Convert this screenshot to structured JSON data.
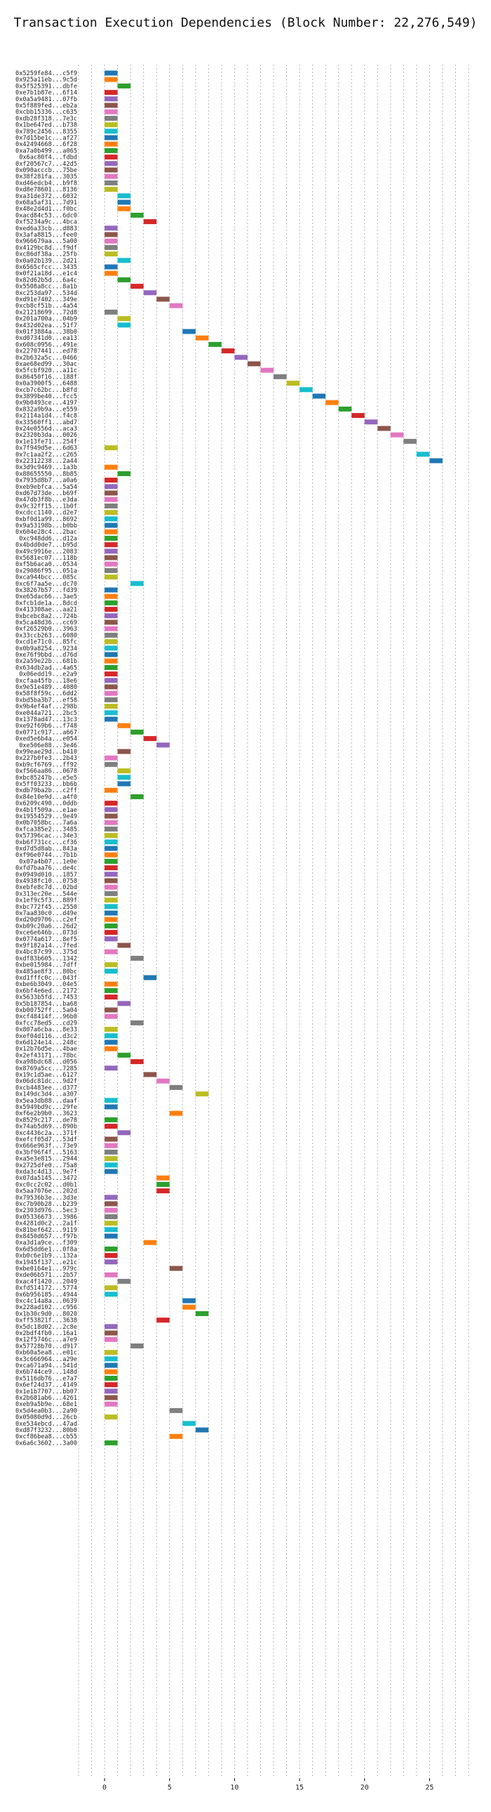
{
  "chart_data": {
    "type": "gantt",
    "title": "Transaction Execution Dependencies (Block Number: 22,276,549)",
    "xlabel": "",
    "ylabel": "",
    "xlim": [
      -2,
      28
    ],
    "xticks": [
      0,
      5,
      10,
      15,
      20,
      25
    ],
    "grid": true,
    "bar_duration": 1,
    "palette": [
      "#1f77b4",
      "#ff7f0e",
      "#2ca02c",
      "#d62728",
      "#9467bd",
      "#8c564b",
      "#e377c2",
      "#7f7f7f",
      "#bcbd22",
      "#17becf"
    ],
    "transactions": [
      {
        "label": "0x5259fe84...c5f9",
        "start": 0
      },
      {
        "label": "0x925a11eb...9c5d",
        "start": 0
      },
      {
        "label": "0x5f525391...dbfe",
        "start": 1
      },
      {
        "label": "0xe7b1b87e...6f14",
        "start": 0
      },
      {
        "label": "0x0a5a9481...07fb",
        "start": 0
      },
      {
        "label": "0x5f889fed...eb2a",
        "start": 0
      },
      {
        "label": "0xcbb15336...c635",
        "start": 0
      },
      {
        "label": "0xdb28f318...7e3c",
        "start": 0
      },
      {
        "label": "0x1be647ed...b738",
        "start": 0
      },
      {
        "label": "0x789c2456...8355",
        "start": 0
      },
      {
        "label": "0x7d15be1c...af27",
        "start": 0
      },
      {
        "label": "0x42494668...6f28",
        "start": 0
      },
      {
        "label": "0xa7a0b499...a065",
        "start": 0
      },
      {
        "label": "0x6ac80f4...fdbd",
        "start": 0
      },
      {
        "label": "0xf20567c7...42d5",
        "start": 0
      },
      {
        "label": "0x090acccb...75be",
        "start": 0
      },
      {
        "label": "0x38f281fa...3035",
        "start": 0
      },
      {
        "label": "0xd46edcb4...b9f8",
        "start": 0
      },
      {
        "label": "0xd8e78601...8136",
        "start": 0
      },
      {
        "label": "0xa31de372...6032",
        "start": 1
      },
      {
        "label": "0x68a5af31...7d91",
        "start": 1
      },
      {
        "label": "0x48e2d4d1...f0bc",
        "start": 1
      },
      {
        "label": "0xacd84c53...6dc0",
        "start": 2
      },
      {
        "label": "0xf5234a9c...4bca",
        "start": 3
      },
      {
        "label": "0xed6a33cb...d883",
        "start": 0
      },
      {
        "label": "0x3afa8815...fee0",
        "start": 0
      },
      {
        "label": "0x966679aa...5a00",
        "start": 0
      },
      {
        "label": "0x4129bc8d...f9df",
        "start": 0
      },
      {
        "label": "0xc86df38a...25fb",
        "start": 0
      },
      {
        "label": "0x0a02b139...2d21",
        "start": 1
      },
      {
        "label": "0x6565cfcc...3435",
        "start": 0
      },
      {
        "label": "0x0f21a18d...e1c4",
        "start": 0
      },
      {
        "label": "0x82d62b5d...6a4c",
        "start": 1
      },
      {
        "label": "0x5508a8cc...8a1b",
        "start": 2
      },
      {
        "label": "0xc253da97...534d",
        "start": 3
      },
      {
        "label": "0xd91e7402...349e",
        "start": 4
      },
      {
        "label": "0xcb8cf51b...4a54",
        "start": 5
      },
      {
        "label": "0x21218699...72d8",
        "start": 0
      },
      {
        "label": "0x201a700a...04b9",
        "start": 1
      },
      {
        "label": "0x432d02ea...51f7",
        "start": 1
      },
      {
        "label": "0x01f3884a...38b0",
        "start": 6
      },
      {
        "label": "0xd07341d0...ea13",
        "start": 7
      },
      {
        "label": "0x608c0956...491e",
        "start": 8
      },
      {
        "label": "0x22707441...ed78",
        "start": 9
      },
      {
        "label": "0x2b632a5c...0466",
        "start": 10
      },
      {
        "label": "0xae68ed99...30ac",
        "start": 11
      },
      {
        "label": "0x5fcbf920...a11c",
        "start": 12
      },
      {
        "label": "0x86450f16...188f",
        "start": 13
      },
      {
        "label": "0x0a3900f5...6488",
        "start": 14
      },
      {
        "label": "0xcb7c62bc...b8fd",
        "start": 15
      },
      {
        "label": "0x3899be40...fcc5",
        "start": 16
      },
      {
        "label": "0x9b0493ce...4197",
        "start": 17
      },
      {
        "label": "0x832a9b9a...e559",
        "start": 18
      },
      {
        "label": "0x2114a1d4...f4c8",
        "start": 19
      },
      {
        "label": "0x33560ff1...abd7",
        "start": 20
      },
      {
        "label": "0x24e0556d...aca3",
        "start": 21
      },
      {
        "label": "0x2320b3da...0026",
        "start": 22
      },
      {
        "label": "0x1e13fe71...254f",
        "start": 23
      },
      {
        "label": "0x7f949d5e...6d63",
        "start": 0
      },
      {
        "label": "0x7c1aa2f2...c265",
        "start": 24
      },
      {
        "label": "0x22312238...2a44",
        "start": 25
      },
      {
        "label": "0x3d9c9469...1a3b",
        "start": 0
      },
      {
        "label": "0x88655550...8b85",
        "start": 1
      },
      {
        "label": "0x7935d8b7...a0a6",
        "start": 0
      },
      {
        "label": "0xeb9ebfca...5a54",
        "start": 0
      },
      {
        "label": "0xd67d73de...b69f",
        "start": 0
      },
      {
        "label": "0x47db3f8b...e3da",
        "start": 0
      },
      {
        "label": "0x9c32ff15...1b0f",
        "start": 0
      },
      {
        "label": "0xcdcc1140...d2e7",
        "start": 0
      },
      {
        "label": "0xbf0d1a99...8692",
        "start": 0
      },
      {
        "label": "0x9a53198b...b0bb",
        "start": 0
      },
      {
        "label": "0x604e28c4...2bac",
        "start": 0
      },
      {
        "label": "0xc948dd6...d12a",
        "start": 0
      },
      {
        "label": "0x4bdd0de7...b95d",
        "start": 0
      },
      {
        "label": "0x49c9916e...2083",
        "start": 0
      },
      {
        "label": "0x5681ec07...118b",
        "start": 0
      },
      {
        "label": "0xf5b6aca0...0534",
        "start": 0
      },
      {
        "label": "0x29086f95...051a",
        "start": 0
      },
      {
        "label": "0xca944bcc...085c",
        "start": 0
      },
      {
        "label": "0xc6f7aa5e...dc70",
        "start": 2
      },
      {
        "label": "0x38267b57...fd39",
        "start": 0
      },
      {
        "label": "0xe65dac66...3ae5",
        "start": 0
      },
      {
        "label": "0xfcb1de1a...8dcd",
        "start": 0
      },
      {
        "label": "0x413308ae...aa21",
        "start": 0
      },
      {
        "label": "0xbcebc8a2...724b",
        "start": 0
      },
      {
        "label": "0x5ca48d36...cc69",
        "start": 0
      },
      {
        "label": "0xf26529b0...3963",
        "start": 0
      },
      {
        "label": "0x33ccb263...6080",
        "start": 0
      },
      {
        "label": "0xcd1e71c0...85fc",
        "start": 0
      },
      {
        "label": "0x0b9a8254...9234",
        "start": 0
      },
      {
        "label": "0xe76f9bbd...d76d",
        "start": 0
      },
      {
        "label": "0x2a59e22b...681b",
        "start": 0
      },
      {
        "label": "0x634db2ad...4a65",
        "start": 0
      },
      {
        "label": "0x06edd19...e2a9",
        "start": 0
      },
      {
        "label": "0xcfaa45fb...18e6",
        "start": 0
      },
      {
        "label": "0x9e51e489...4080",
        "start": 0
      },
      {
        "label": "0x58f8f59c...6dd2",
        "start": 0
      },
      {
        "label": "0xbd5ba3b7...ef58",
        "start": 0
      },
      {
        "label": "0x9b4ef4af...298b",
        "start": 0
      },
      {
        "label": "0xe044a721...2bc5",
        "start": 0
      },
      {
        "label": "0x1378ad47...13c3",
        "start": 0
      },
      {
        "label": "0xe92f69b6...f748",
        "start": 1
      },
      {
        "label": "0x0771c917...a667",
        "start": 2
      },
      {
        "label": "0xed5e6b4a...e054",
        "start": 3
      },
      {
        "label": "0xe506e88...3e46",
        "start": 4
      },
      {
        "label": "0x99eae29d...b410",
        "start": 1
      },
      {
        "label": "0x227b0fe3...2b43",
        "start": 0
      },
      {
        "label": "0xb9cf6769...ff92",
        "start": 0
      },
      {
        "label": "0xf566aa86...0678",
        "start": 1
      },
      {
        "label": "0xbc85247b...e5e5",
        "start": 1
      },
      {
        "label": "0x5ff03233...bb6b",
        "start": 1
      },
      {
        "label": "0xdb79ba2b...c2ff",
        "start": 0
      },
      {
        "label": "0x84e10e9d...a4f0",
        "start": 2
      },
      {
        "label": "0x6209c490...0ddb",
        "start": 0
      },
      {
        "label": "0x4b1f509a...e1ae",
        "start": 0
      },
      {
        "label": "0x19554529...9e49",
        "start": 0
      },
      {
        "label": "0x0b7058bc...7a6a",
        "start": 0
      },
      {
        "label": "0xfca385e2...3485",
        "start": 0
      },
      {
        "label": "0x57396cac...34e3",
        "start": 0
      },
      {
        "label": "0xb6f731cc...cf36",
        "start": 0
      },
      {
        "label": "0xd7d5d8ab...843a",
        "start": 0
      },
      {
        "label": "0xf96e0744...7b1b",
        "start": 0
      },
      {
        "label": "0x07a4b07...1e0e",
        "start": 0
      },
      {
        "label": "0xfd7baa76...de4c",
        "start": 0
      },
      {
        "label": "0x0949d010...1857",
        "start": 0
      },
      {
        "label": "0x4938fc10...0758",
        "start": 0
      },
      {
        "label": "0xebfe8c7d...02bd",
        "start": 0
      },
      {
        "label": "0x313ec20e...544e",
        "start": 0
      },
      {
        "label": "0x1ef9c5f3...889f",
        "start": 0
      },
      {
        "label": "0xbc772f45...2550",
        "start": 0
      },
      {
        "label": "0x7aa830c0...d49e",
        "start": 0
      },
      {
        "label": "0xd20d9706...c2ef",
        "start": 0
      },
      {
        "label": "0xb09c20a6...26d2",
        "start": 0
      },
      {
        "label": "0xce6e646b...073d",
        "start": 0
      },
      {
        "label": "0x0774a617...8ef5",
        "start": 0
      },
      {
        "label": "0x9f182a14...7fed",
        "start": 1
      },
      {
        "label": "0x4bc87c99...375d",
        "start": 0
      },
      {
        "label": "0xdf83b605...1342",
        "start": 2
      },
      {
        "label": "0xbe015984...7dff",
        "start": 0
      },
      {
        "label": "0x485ae8f3...80bc",
        "start": 0
      },
      {
        "label": "0xd1fffc0c...043f",
        "start": 3
      },
      {
        "label": "0xbe6b3049...04e5",
        "start": 0
      },
      {
        "label": "0x6bf4e6ed...2172",
        "start": 0
      },
      {
        "label": "0x5633b5fd...7453",
        "start": 0
      },
      {
        "label": "0x5b187854...ba68",
        "start": 1
      },
      {
        "label": "0xb00752ff...5a04",
        "start": 0
      },
      {
        "label": "0xcf48414f...96b0",
        "start": 0
      },
      {
        "label": "0xfcc78ed5...cd29",
        "start": 2
      },
      {
        "label": "0x807a6cba...8e33",
        "start": 0
      },
      {
        "label": "0xef04d116...d3c2",
        "start": 0
      },
      {
        "label": "0x6d124e14...248c",
        "start": 0
      },
      {
        "label": "0x12b76d5e...4bae",
        "start": 0
      },
      {
        "label": "0x2ef43171...78bc",
        "start": 1
      },
      {
        "label": "0xa98bdc68...d056",
        "start": 2
      },
      {
        "label": "0x8769a5cc...7285",
        "start": 0
      },
      {
        "label": "0x19c1d5ae...6127",
        "start": 3
      },
      {
        "label": "0x06dc81dc...9d2f",
        "start": 4
      },
      {
        "label": "0xcb4483ee...d377",
        "start": 5
      },
      {
        "label": "0x149dc3d4...a307",
        "start": 7
      },
      {
        "label": "0x5ea3db88...daaf",
        "start": 0
      },
      {
        "label": "0x5949bd9c...29fe",
        "start": 0
      },
      {
        "label": "0xf6e2b9b0...3623",
        "start": 5
      },
      {
        "label": "0x8529c217...de78",
        "start": 0
      },
      {
        "label": "0x74ab5d69...890b",
        "start": 0
      },
      {
        "label": "0xc4436c2a...371f",
        "start": 1
      },
      {
        "label": "0xefcf05d7...53df",
        "start": 0
      },
      {
        "label": "0x666e963f...73e9",
        "start": 0
      },
      {
        "label": "0x3bf96f4f...5163",
        "start": 0
      },
      {
        "label": "0xa5e3e815...2944",
        "start": 0
      },
      {
        "label": "0x2725dfe0...75a8",
        "start": 0
      },
      {
        "label": "0xda3c4d13...9e7f",
        "start": 0
      },
      {
        "label": "0x07da5145...3472",
        "start": 4
      },
      {
        "label": "0xc0cc2c02...d0b1",
        "start": 4
      },
      {
        "label": "0x5aa7076e...202d",
        "start": 4
      },
      {
        "label": "0x79536b3e...3d3e",
        "start": 0
      },
      {
        "label": "0xc7b90b28...b239",
        "start": 0
      },
      {
        "label": "0x2303d976...5ec3",
        "start": 0
      },
      {
        "label": "0x05336673...3986",
        "start": 0
      },
      {
        "label": "0x4281d0c2...2a1f",
        "start": 0
      },
      {
        "label": "0x81bef642...9119",
        "start": 0
      },
      {
        "label": "0x8450d657...f97b",
        "start": 0
      },
      {
        "label": "0xa3d1a9ce...f309",
        "start": 3
      },
      {
        "label": "0x6d5dd6e1...0f8a",
        "start": 0
      },
      {
        "label": "0xb0c6e1b9...132a",
        "start": 0
      },
      {
        "label": "0x1945f137...e21c",
        "start": 0
      },
      {
        "label": "0xbe0164e1...979c",
        "start": 5
      },
      {
        "label": "0xde06b571...2b57",
        "start": 0
      },
      {
        "label": "0xac4f1420...2049",
        "start": 1
      },
      {
        "label": "0xfd514172...5774",
        "start": 0
      },
      {
        "label": "0x6b956185...4944",
        "start": 0
      },
      {
        "label": "0xc4c14a8a...0639",
        "start": 6
      },
      {
        "label": "0x228ad102...c956",
        "start": 6
      },
      {
        "label": "0x1b30c9d0...8020",
        "start": 7
      },
      {
        "label": "0xff53821f...3638",
        "start": 4
      },
      {
        "label": "0x5dc18d02...2c8e",
        "start": 0
      },
      {
        "label": "0x2bdf4fb0...16a1",
        "start": 0
      },
      {
        "label": "0x12f5746c...a7e9",
        "start": 0
      },
      {
        "label": "0x57728b70...d917",
        "start": 2
      },
      {
        "label": "0xb60a5ea8...e01c",
        "start": 0
      },
      {
        "label": "0x3c666964...a29e",
        "start": 0
      },
      {
        "label": "0xca671a94...541d",
        "start": 0
      },
      {
        "label": "0x6b744ce9...148d",
        "start": 0
      },
      {
        "label": "0x5116db76...e7a7",
        "start": 0
      },
      {
        "label": "0x6ef24d37...4149",
        "start": 0
      },
      {
        "label": "0x1e1b7707...bb07",
        "start": 0
      },
      {
        "label": "0x2b681ab6...4261",
        "start": 0
      },
      {
        "label": "0xeb9a5b9e...68e1",
        "start": 0
      },
      {
        "label": "0x5d4ea0b3...2a90",
        "start": 5
      },
      {
        "label": "0x05080d9d...26cb",
        "start": 0
      },
      {
        "label": "0xe534ebcd...47ad",
        "start": 6
      },
      {
        "label": "0xd87f3232...80b0",
        "start": 7
      },
      {
        "label": "0xcf86bea8...cb55",
        "start": 5
      },
      {
        "label": "0x6a6c3602...3a00",
        "start": 0
      }
    ]
  }
}
